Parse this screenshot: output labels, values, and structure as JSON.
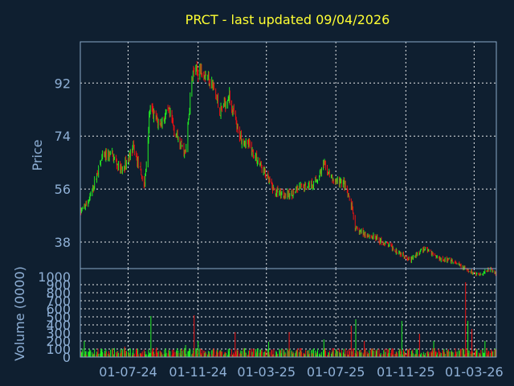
{
  "chart_data": [
    {
      "type": "candlestick",
      "title": "PRCT - last updated 09/04/2026",
      "ylabel": "Price",
      "yticks": [
        38,
        56,
        74,
        92
      ],
      "ylim": [
        29,
        106
      ],
      "x_tick_labels": [
        "01-07-24",
        "01-11-24",
        "01-03-25",
        "01-07-25",
        "01-11-25",
        "01-03-26"
      ],
      "xlim": [
        "2024-04-08",
        "2026-04-09"
      ],
      "grid": true,
      "colors": {
        "up": "#22ee22",
        "down": "#ee1111"
      },
      "trend": [
        {
          "x": "2024-04-08",
          "y": 48
        },
        {
          "x": "2024-04-25",
          "y": 53
        },
        {
          "x": "2024-05-15",
          "y": 66
        },
        {
          "x": "2024-06-01",
          "y": 68
        },
        {
          "x": "2024-06-20",
          "y": 62
        },
        {
          "x": "2024-07-10",
          "y": 70
        },
        {
          "x": "2024-07-30",
          "y": 57
        },
        {
          "x": "2024-08-08",
          "y": 83
        },
        {
          "x": "2024-08-25",
          "y": 78
        },
        {
          "x": "2024-09-10",
          "y": 82
        },
        {
          "x": "2024-09-28",
          "y": 72
        },
        {
          "x": "2024-10-10",
          "y": 68
        },
        {
          "x": "2024-10-22",
          "y": 95
        },
        {
          "x": "2024-11-08",
          "y": 97
        },
        {
          "x": "2024-11-25",
          "y": 92
        },
        {
          "x": "2024-12-10",
          "y": 82
        },
        {
          "x": "2024-12-25",
          "y": 88
        },
        {
          "x": "2025-01-10",
          "y": 75
        },
        {
          "x": "2025-02-01",
          "y": 70
        },
        {
          "x": "2025-02-25",
          "y": 62
        },
        {
          "x": "2025-03-15",
          "y": 55
        },
        {
          "x": "2025-04-10",
          "y": 54
        },
        {
          "x": "2025-05-05",
          "y": 57
        },
        {
          "x": "2025-05-25",
          "y": 58
        },
        {
          "x": "2025-06-10",
          "y": 64
        },
        {
          "x": "2025-06-25",
          "y": 59
        },
        {
          "x": "2025-07-15",
          "y": 58
        },
        {
          "x": "2025-07-30",
          "y": 49
        },
        {
          "x": "2025-08-05",
          "y": 42
        },
        {
          "x": "2025-09-01",
          "y": 40
        },
        {
          "x": "2025-10-01",
          "y": 37
        },
        {
          "x": "2025-10-25",
          "y": 34
        },
        {
          "x": "2025-11-10",
          "y": 32
        },
        {
          "x": "2025-12-05",
          "y": 36
        },
        {
          "x": "2025-12-25",
          "y": 33
        },
        {
          "x": "2026-01-25",
          "y": 31
        },
        {
          "x": "2026-02-20",
          "y": 28
        },
        {
          "x": "2026-03-10",
          "y": 27
        },
        {
          "x": "2026-03-28",
          "y": 29
        },
        {
          "x": "2026-04-09",
          "y": 27
        }
      ]
    },
    {
      "type": "bar",
      "ylabel": "Volume (0000)",
      "yticks": [
        0,
        100,
        200,
        300,
        400,
        500,
        600,
        700,
        800,
        900,
        1000
      ],
      "ylim": [
        0,
        1000
      ],
      "x_tick_labels": [
        "01-07-24",
        "01-11-24",
        "01-03-25",
        "01-07-25",
        "01-11-25",
        "01-03-26"
      ],
      "base_volume": 80,
      "spikes": [
        {
          "x": "2024-04-15",
          "v": 200
        },
        {
          "x": "2024-06-25",
          "v": 130
        },
        {
          "x": "2024-08-10",
          "v": 510
        },
        {
          "x": "2024-08-20",
          "v": 120
        },
        {
          "x": "2024-10-10",
          "v": 150
        },
        {
          "x": "2024-10-25",
          "v": 520
        },
        {
          "x": "2024-11-01",
          "v": 200
        },
        {
          "x": "2025-01-05",
          "v": 310
        },
        {
          "x": "2025-03-05",
          "v": 190
        },
        {
          "x": "2025-04-10",
          "v": 310
        },
        {
          "x": "2025-06-10",
          "v": 220
        },
        {
          "x": "2025-07-28",
          "v": 390
        },
        {
          "x": "2025-08-05",
          "v": 470
        },
        {
          "x": "2025-08-20",
          "v": 200
        },
        {
          "x": "2025-10-25",
          "v": 450
        },
        {
          "x": "2025-11-25",
          "v": 290
        },
        {
          "x": "2025-12-20",
          "v": 200
        },
        {
          "x": "2026-02-14",
          "v": 930
        },
        {
          "x": "2026-02-18",
          "v": 450
        },
        {
          "x": "2026-02-25",
          "v": 350
        },
        {
          "x": "2026-03-20",
          "v": 200
        }
      ]
    }
  ]
}
